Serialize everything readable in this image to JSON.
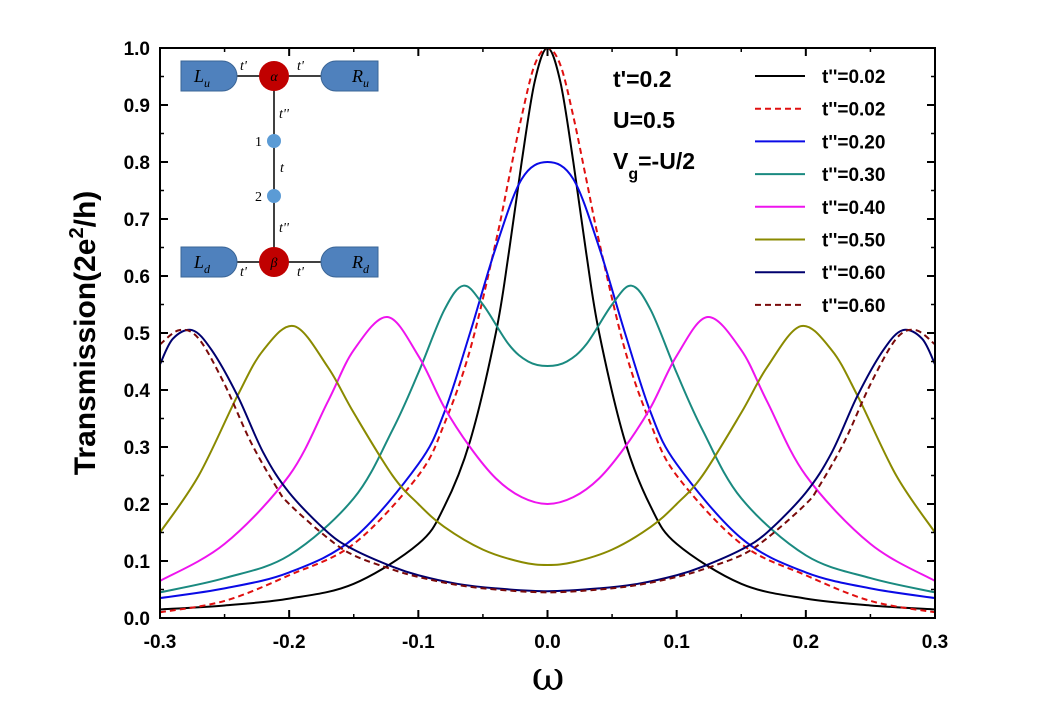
{
  "chart_data": {
    "type": "line",
    "xlabel": "ω",
    "ylabel": "Transmission(2e²/h)",
    "xlim": [
      -0.3,
      0.3
    ],
    "ylim": [
      0.0,
      1.0
    ],
    "xticks": [
      "-0.3",
      "-0.2",
      "-0.1",
      "0.0",
      "0.1",
      "0.2",
      "0.3"
    ],
    "yticks": [
      "0.0",
      "0.1",
      "0.2",
      "0.3",
      "0.4",
      "0.5",
      "0.6",
      "0.7",
      "0.8",
      "0.9",
      "1.0"
    ],
    "grid": false,
    "legend_position": "right",
    "parameters": [
      "t'=0.2",
      "U=0.5",
      "Vg=-U/2"
    ],
    "series": [
      {
        "name": "t''=0.02",
        "color": "#000000",
        "dash": "solid",
        "x": [
          -0.3,
          -0.25,
          -0.2,
          -0.15,
          -0.1,
          -0.08,
          -0.06,
          -0.04,
          -0.03,
          -0.02,
          -0.01,
          0.0,
          0.01,
          0.02,
          0.03,
          0.04,
          0.06,
          0.08,
          0.1,
          0.15,
          0.2,
          0.25,
          0.3
        ],
        "y": [
          0.015,
          0.022,
          0.034,
          0.06,
          0.13,
          0.195,
          0.31,
          0.5,
          0.64,
          0.8,
          0.94,
          1.0,
          0.94,
          0.8,
          0.64,
          0.5,
          0.31,
          0.195,
          0.13,
          0.06,
          0.034,
          0.022,
          0.015
        ]
      },
      {
        "name": "t''=0.02",
        "color": "#e01010",
        "dash": "dashed",
        "x": [
          -0.3,
          -0.25,
          -0.2,
          -0.15,
          -0.1,
          -0.08,
          -0.06,
          -0.04,
          -0.03,
          -0.02,
          -0.01,
          0.0,
          0.01,
          0.02,
          0.03,
          0.04,
          0.06,
          0.08,
          0.1,
          0.15,
          0.2,
          0.25,
          0.3
        ],
        "y": [
          0.01,
          0.03,
          0.075,
          0.13,
          0.25,
          0.34,
          0.47,
          0.66,
          0.77,
          0.88,
          0.97,
          1.0,
          0.97,
          0.88,
          0.77,
          0.66,
          0.47,
          0.34,
          0.25,
          0.13,
          0.075,
          0.03,
          0.01
        ]
      },
      {
        "name": "t''=0.20",
        "color": "#0a0ae6",
        "dash": "solid",
        "x": [
          -0.3,
          -0.25,
          -0.2,
          -0.15,
          -0.1,
          -0.08,
          -0.06,
          -0.04,
          -0.02,
          0.0,
          0.02,
          0.04,
          0.06,
          0.08,
          0.1,
          0.15,
          0.2,
          0.25,
          0.3
        ],
        "y": [
          0.035,
          0.052,
          0.08,
          0.14,
          0.27,
          0.36,
          0.5,
          0.65,
          0.77,
          0.8,
          0.77,
          0.65,
          0.5,
          0.36,
          0.27,
          0.14,
          0.08,
          0.052,
          0.035
        ]
      },
      {
        "name": "t''=0.30",
        "color": "#1a8a80",
        "dash": "solid",
        "x": [
          -0.3,
          -0.25,
          -0.2,
          -0.15,
          -0.12,
          -0.1,
          -0.08,
          -0.065,
          -0.05,
          -0.03,
          -0.015,
          0.0,
          0.015,
          0.03,
          0.05,
          0.065,
          0.08,
          0.1,
          0.12,
          0.15,
          0.2,
          0.25,
          0.3
        ],
        "y": [
          0.045,
          0.07,
          0.11,
          0.21,
          0.33,
          0.43,
          0.54,
          0.583,
          0.55,
          0.48,
          0.45,
          0.442,
          0.45,
          0.48,
          0.55,
          0.583,
          0.54,
          0.43,
          0.33,
          0.21,
          0.11,
          0.07,
          0.045
        ]
      },
      {
        "name": "t''=0.40",
        "color": "#ee14ee",
        "dash": "solid",
        "x": [
          -0.3,
          -0.25,
          -0.2,
          -0.17,
          -0.15,
          -0.124,
          -0.1,
          -0.08,
          -0.06,
          -0.04,
          -0.02,
          0.0,
          0.02,
          0.04,
          0.06,
          0.08,
          0.1,
          0.124,
          0.15,
          0.17,
          0.2,
          0.25,
          0.3
        ],
        "y": [
          0.065,
          0.13,
          0.25,
          0.38,
          0.47,
          0.528,
          0.46,
          0.37,
          0.3,
          0.245,
          0.212,
          0.2,
          0.212,
          0.245,
          0.3,
          0.37,
          0.46,
          0.528,
          0.47,
          0.38,
          0.25,
          0.13,
          0.065
        ]
      },
      {
        "name": "t''=0.50",
        "color": "#8a8a00",
        "dash": "solid",
        "x": [
          -0.3,
          -0.27,
          -0.24,
          -0.22,
          -0.196,
          -0.17,
          -0.15,
          -0.12,
          -0.1,
          -0.08,
          -0.05,
          -0.02,
          0.0,
          0.02,
          0.05,
          0.08,
          0.1,
          0.12,
          0.15,
          0.17,
          0.196,
          0.22,
          0.24,
          0.27,
          0.3
        ],
        "y": [
          0.15,
          0.25,
          0.39,
          0.47,
          0.512,
          0.44,
          0.36,
          0.25,
          0.2,
          0.16,
          0.12,
          0.098,
          0.093,
          0.098,
          0.12,
          0.16,
          0.2,
          0.25,
          0.36,
          0.44,
          0.512,
          0.47,
          0.39,
          0.25,
          0.15
        ]
      },
      {
        "name": "t''=0.60",
        "color": "#00006e",
        "dash": "solid",
        "x": [
          -0.3,
          -0.29,
          -0.275,
          -0.26,
          -0.24,
          -0.22,
          -0.2,
          -0.17,
          -0.15,
          -0.12,
          -0.1,
          -0.07,
          -0.04,
          0.0,
          0.04,
          0.07,
          0.1,
          0.12,
          0.15,
          0.17,
          0.2,
          0.22,
          0.24,
          0.26,
          0.275,
          0.29,
          0.3
        ],
        "y": [
          0.445,
          0.49,
          0.505,
          0.47,
          0.39,
          0.29,
          0.22,
          0.15,
          0.12,
          0.09,
          0.075,
          0.06,
          0.052,
          0.047,
          0.052,
          0.06,
          0.075,
          0.09,
          0.12,
          0.15,
          0.22,
          0.29,
          0.39,
          0.47,
          0.505,
          0.49,
          0.445
        ]
      },
      {
        "name": "t''=0.60",
        "color": "#7a0a0a",
        "dash": "dashed",
        "x": [
          -0.3,
          -0.285,
          -0.27,
          -0.25,
          -0.23,
          -0.21,
          -0.2,
          -0.17,
          -0.15,
          -0.12,
          -0.1,
          -0.07,
          -0.04,
          0.0,
          0.04,
          0.07,
          0.1,
          0.12,
          0.15,
          0.17,
          0.2,
          0.21,
          0.23,
          0.25,
          0.27,
          0.285,
          0.3
        ],
        "y": [
          0.48,
          0.505,
          0.49,
          0.41,
          0.31,
          0.23,
          0.2,
          0.14,
          0.11,
          0.085,
          0.072,
          0.058,
          0.05,
          0.045,
          0.05,
          0.058,
          0.072,
          0.085,
          0.11,
          0.14,
          0.2,
          0.23,
          0.31,
          0.41,
          0.49,
          0.505,
          0.48
        ]
      }
    ]
  },
  "inset": {
    "lead_left_up": "Lu",
    "lead_right_up": "Ru",
    "lead_left_down": "Ld",
    "lead_right_down": "Rd",
    "dot_alpha": "α",
    "dot_beta": "β",
    "dot1": "1",
    "dot2": "2",
    "hop_t_prime": "t'",
    "hop_t_double_prime": "t''",
    "hop_t": "t",
    "lead_color": "#4f81bd",
    "big_dot_color": "#c00000",
    "small_dot_color": "#5b9bd5"
  }
}
